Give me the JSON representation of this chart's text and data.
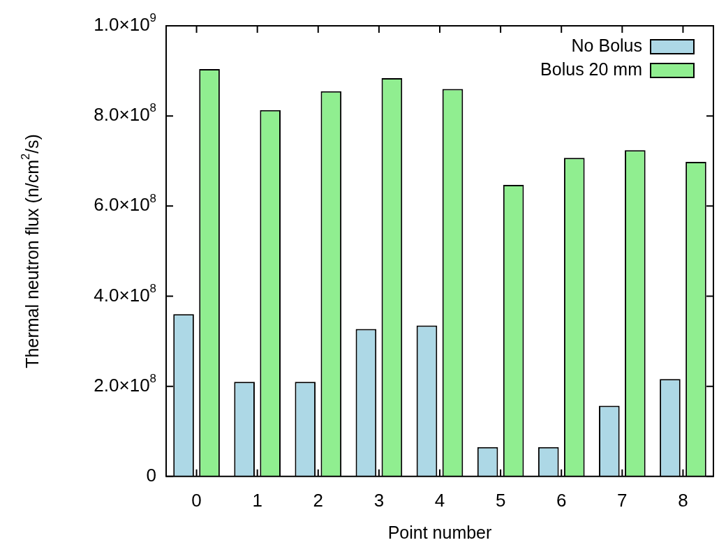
{
  "chart_data": {
    "type": "bar",
    "xlabel": "Point number",
    "ylabel": "Thermal neutron flux (n/cm$^{2}$/s)",
    "categories": [
      "0",
      "1",
      "2",
      "3",
      "4",
      "5",
      "6",
      "7",
      "8"
    ],
    "series": [
      {
        "name": "No Bolus",
        "color": "#add8e6",
        "values": [
          360000000.0,
          210000000.0,
          210000000.0,
          327000000.0,
          335000000.0,
          65000000.0,
          65000000.0,
          157000000.0,
          216000000.0
        ]
      },
      {
        "name": "Bolus 20 mm",
        "color": "#90ee90",
        "values": [
          904000000.0,
          813000000.0,
          855000000.0,
          884000000.0,
          860000000.0,
          647000000.0,
          707000000.0,
          724000000.0,
          698000000.0
        ]
      }
    ],
    "ylim": [
      0,
      1000000000.0
    ],
    "yticks": [
      0,
      {
        "value": 200000000.0,
        "label": "2.0×10$^{8}$"
      },
      {
        "value": 400000000.0,
        "label": "4.0×10$^{8}$"
      },
      {
        "value": 600000000.0,
        "label": "6.0×10$^{8}$"
      },
      {
        "value": 800000000.0,
        "label": "8.0×10$^{8}$"
      },
      {
        "value": 1000000000.0,
        "label": "1.0×10$^{9}$"
      }
    ],
    "grid": false,
    "legend": "top right"
  }
}
